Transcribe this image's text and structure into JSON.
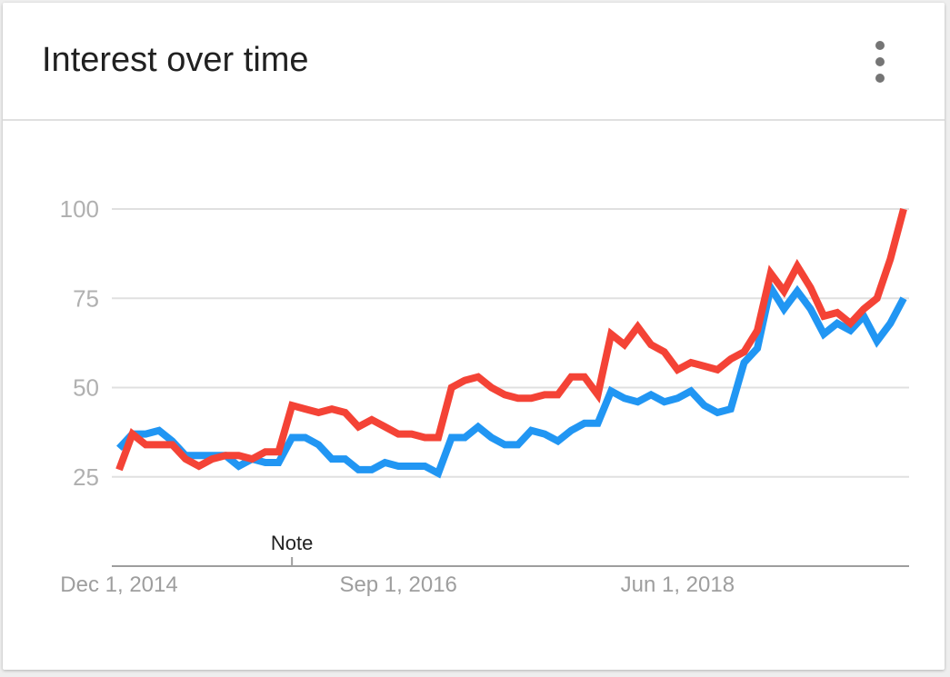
{
  "card": {
    "title": "Interest over time",
    "menu_icon": "more-vert-icon"
  },
  "chart_data": {
    "type": "line",
    "ylim": [
      0,
      100
    ],
    "yticks": [
      "25",
      "50",
      "75",
      "100"
    ],
    "ytick_values": [
      25,
      50,
      75,
      100
    ],
    "xtick_labels": [
      "Dec 1, 2014",
      "Sep 1, 2016",
      "Jun 1, 2018"
    ],
    "xtick_indices": [
      0,
      21,
      42
    ],
    "annotation": {
      "text": "Note",
      "index": 13
    },
    "grid": true,
    "series": [
      {
        "color": "#2196f3",
        "values": [
          33,
          37,
          37,
          38,
          35,
          31,
          31,
          31,
          31,
          28,
          30,
          29,
          29,
          36,
          36,
          34,
          30,
          30,
          27,
          27,
          29,
          28,
          28,
          28,
          26,
          36,
          36,
          39,
          36,
          34,
          34,
          38,
          37,
          35,
          38,
          40,
          40,
          49,
          47,
          46,
          48,
          46,
          47,
          49,
          45,
          43,
          44,
          57,
          61,
          78,
          72,
          77,
          72,
          65,
          68,
          66,
          70,
          63,
          68,
          75
        ]
      },
      {
        "color": "#f44336",
        "values": [
          27,
          37,
          34,
          34,
          34,
          30,
          28,
          30,
          31,
          31,
          30,
          32,
          32,
          45,
          44,
          43,
          44,
          43,
          39,
          41,
          39,
          37,
          37,
          36,
          36,
          50,
          52,
          53,
          50,
          48,
          47,
          47,
          48,
          48,
          53,
          53,
          48,
          65,
          62,
          67,
          62,
          60,
          55,
          57,
          56,
          55,
          58,
          60,
          66,
          82,
          77,
          84,
          78,
          70,
          71,
          68,
          72,
          75,
          86,
          100
        ]
      }
    ]
  }
}
